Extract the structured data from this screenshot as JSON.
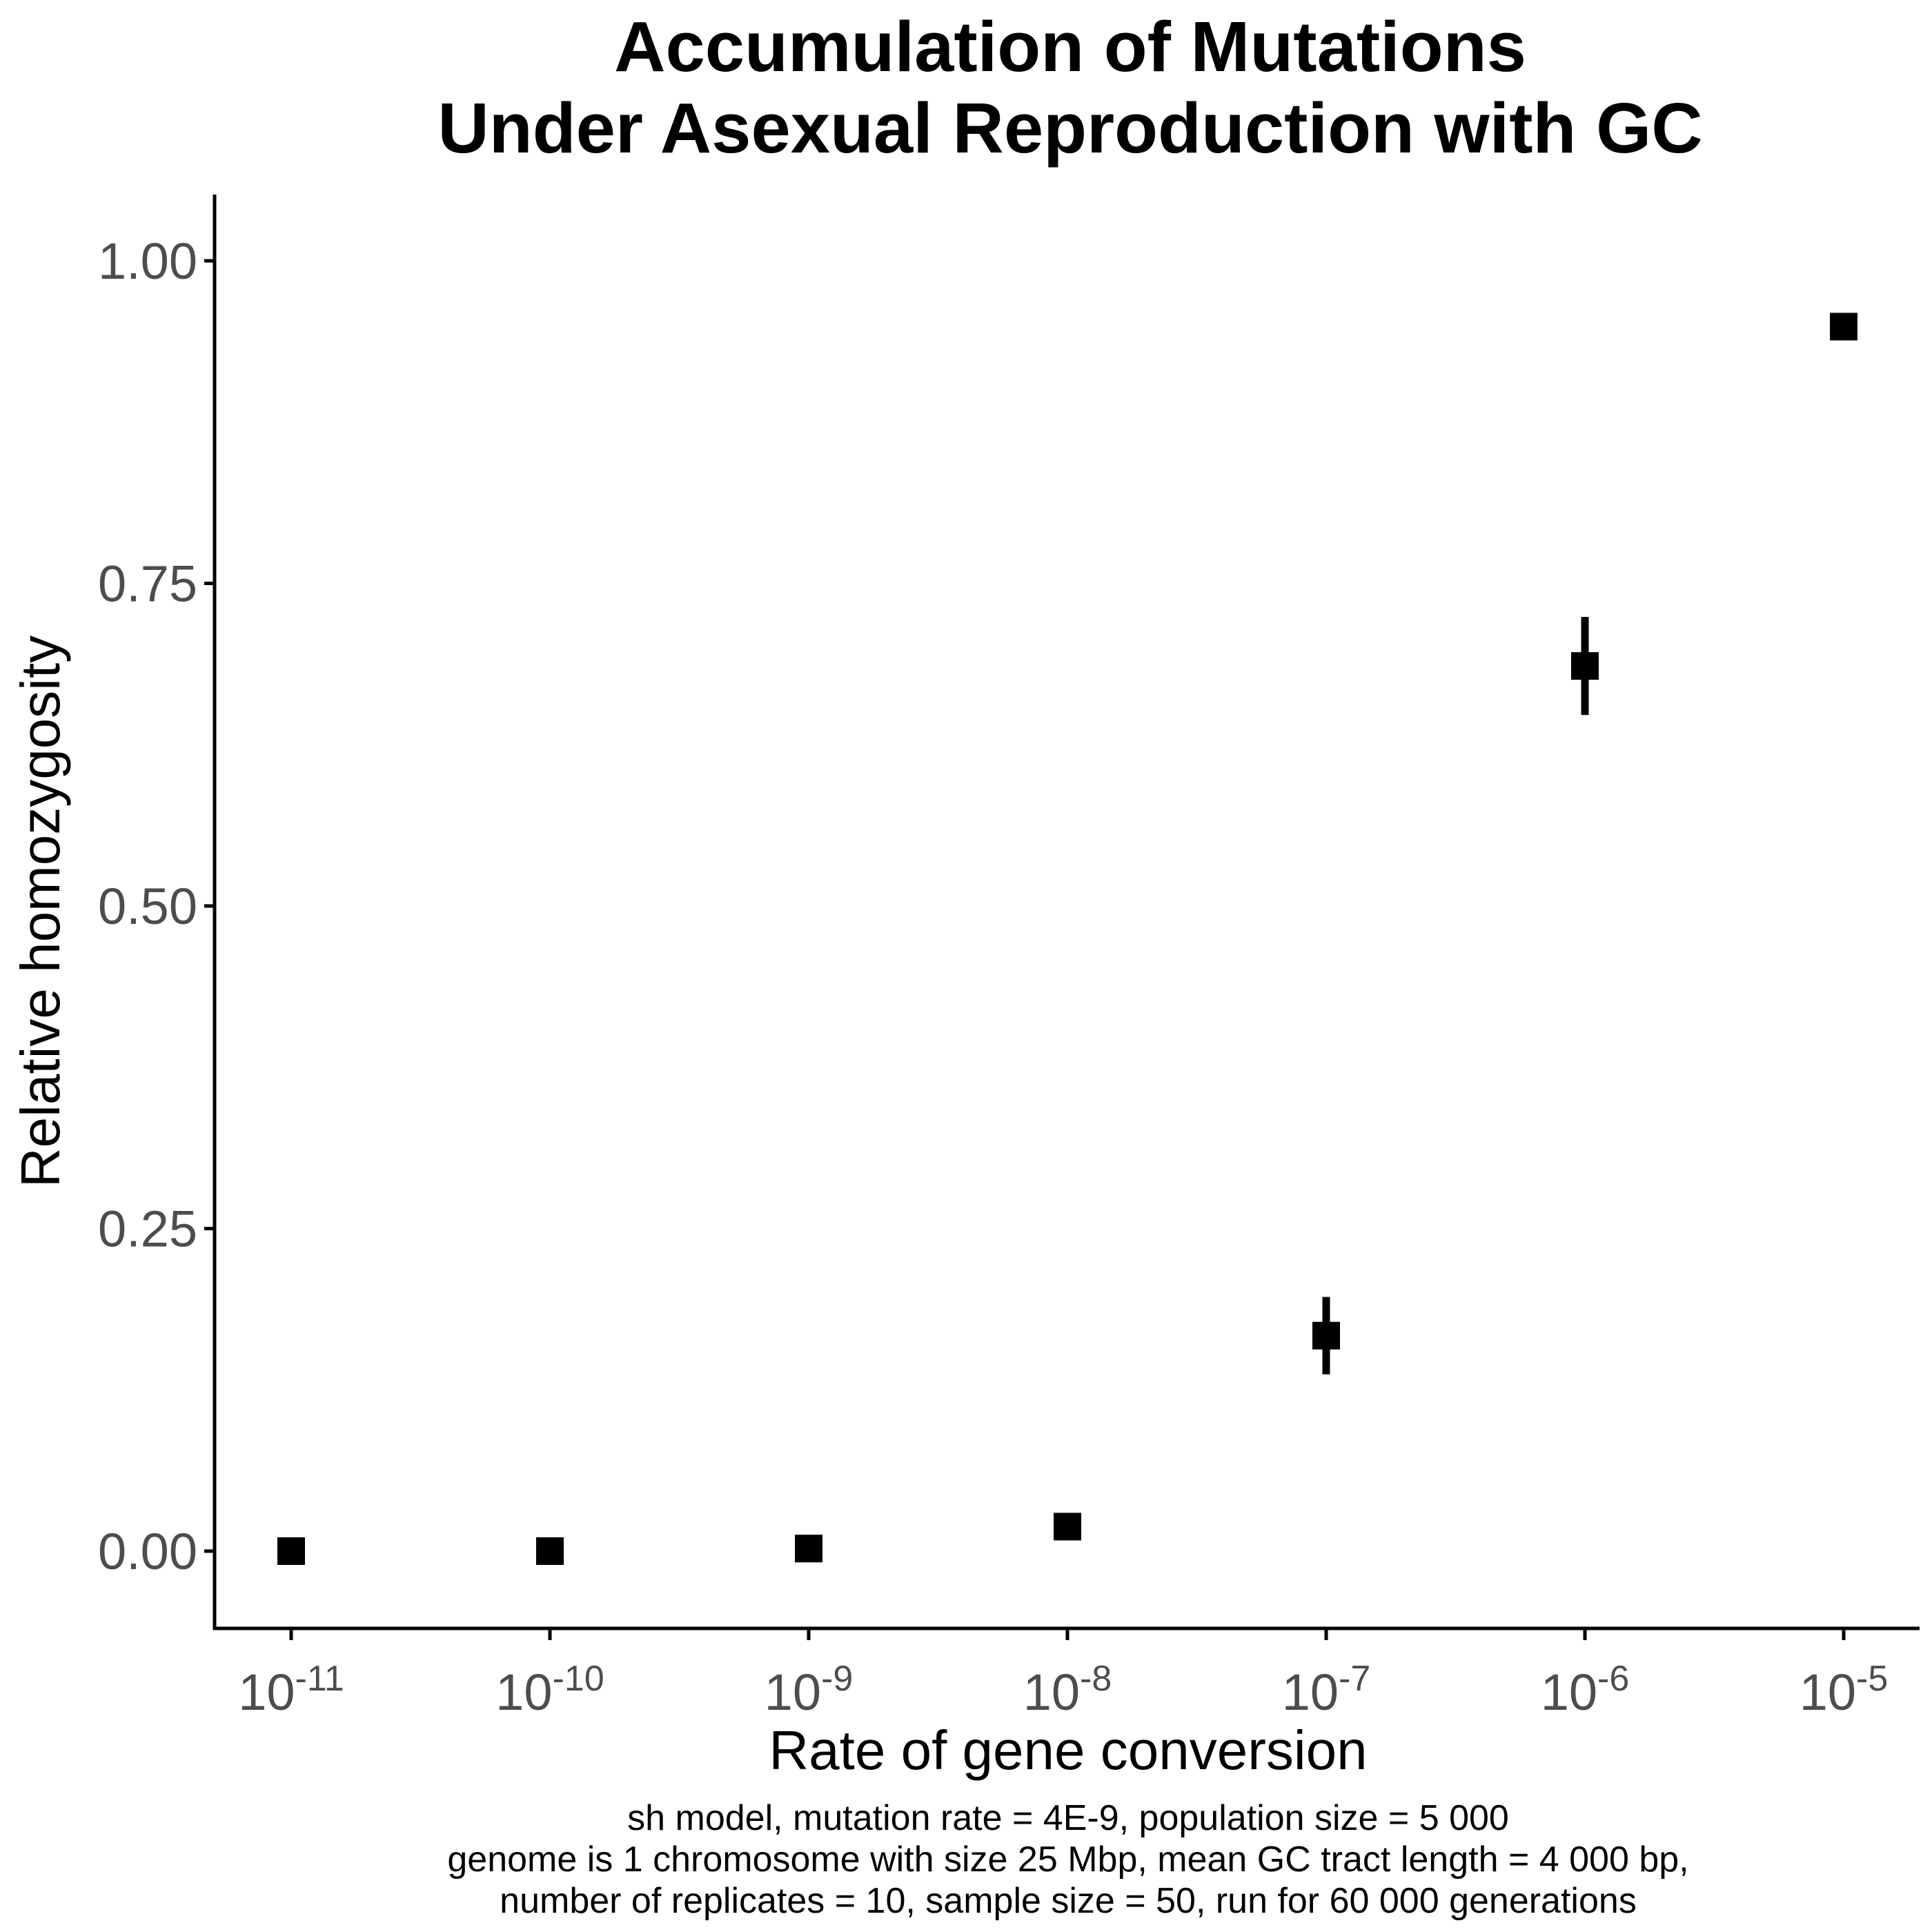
{
  "chart_data": {
    "type": "scatter",
    "title": [
      "Accumulation of Mutations",
      "Under Asexual Reproduction with GC"
    ],
    "xlabel": "Rate of gene conversion",
    "ylabel": "Relative homozygosity",
    "x_scale": "log10",
    "x_ticks": [
      {
        "base": "10",
        "exp": "-11",
        "value": 1e-11
      },
      {
        "base": "10",
        "exp": "-10",
        "value": 1e-10
      },
      {
        "base": "10",
        "exp": "-9",
        "value": 1e-09
      },
      {
        "base": "10",
        "exp": "-8",
        "value": 1e-08
      },
      {
        "base": "10",
        "exp": "-7",
        "value": 1e-07
      },
      {
        "base": "10",
        "exp": "-6",
        "value": 1e-06
      },
      {
        "base": "10",
        "exp": "-5",
        "value": 1e-05
      }
    ],
    "y_ticks": [
      {
        "label": "0.00",
        "value": 0
      },
      {
        "label": "0.25",
        "value": 0.25
      },
      {
        "label": "0.50",
        "value": 0.5
      },
      {
        "label": "0.75",
        "value": 0.75
      },
      {
        "label": "1.00",
        "value": 1.0
      }
    ],
    "ylim": [
      -0.06,
      1.05
    ],
    "points": [
      {
        "x": 1e-11,
        "y": 0.0,
        "ymin": 0.0,
        "ymax": 0.0
      },
      {
        "x": 1e-10,
        "y": 0.0,
        "ymin": 0.0,
        "ymax": 0.0
      },
      {
        "x": 1e-09,
        "y": 0.002,
        "ymin": 0.001,
        "ymax": 0.003
      },
      {
        "x": 1e-08,
        "y": 0.019,
        "ymin": 0.017,
        "ymax": 0.021
      },
      {
        "x": 1e-07,
        "y": 0.167,
        "ymin": 0.137,
        "ymax": 0.197
      },
      {
        "x": 1e-06,
        "y": 0.686,
        "ymin": 0.648,
        "ymax": 0.724
      },
      {
        "x": 1e-05,
        "y": 0.949,
        "ymin": 0.947,
        "ymax": 0.951
      }
    ],
    "caption": [
      "sh model, mutation rate = 4E-9, population size = 5 000",
      "genome is 1 chromosome with size 25 Mbp, mean GC tract length = 4 000 bp,",
      "number of replicates = 10, sample size = 50, run for 60 000 generations"
    ],
    "grid": false,
    "legend": "none",
    "colors": {
      "points": "#000000",
      "axis": "#000000",
      "tick_labels": "#4d4d4d"
    }
  }
}
